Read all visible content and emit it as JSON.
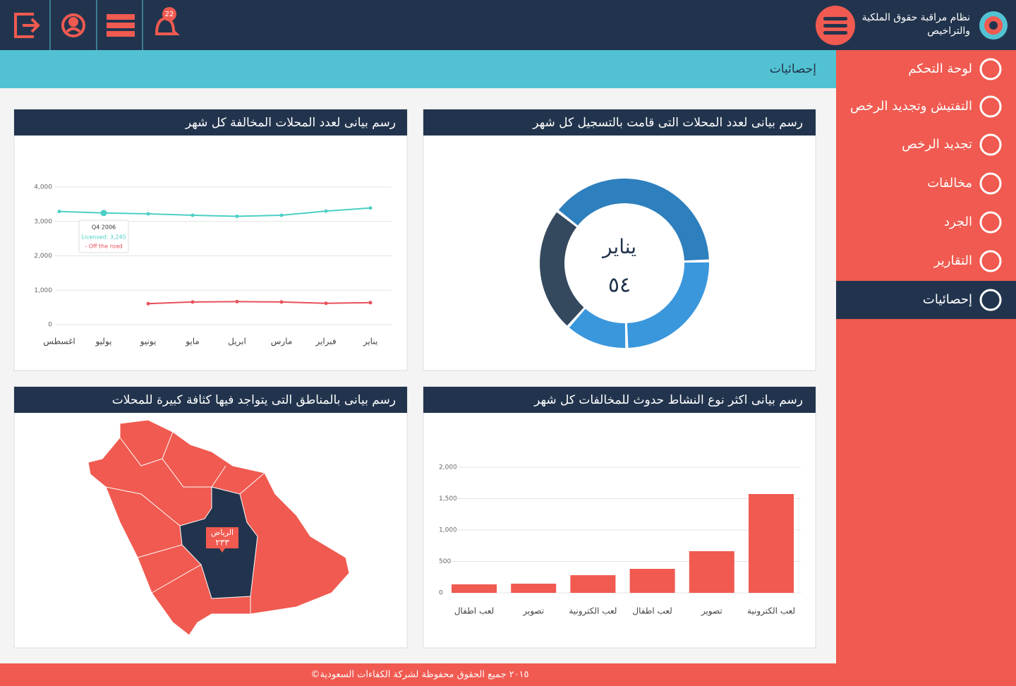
{
  "header": {
    "title_line1": "نظام مراقبة حقوق الملكية",
    "title_line2": "والتراخيص",
    "notification_count": 22
  },
  "sidebar": {
    "items": [
      "لوحة التحكم",
      "التفتيش وتجديد الرخص",
      "تجديد الرخص",
      "مخالفات",
      "الجرد",
      "التقارير",
      "إحصائيات"
    ],
    "active": 6
  },
  "page_title": "إحصائيات",
  "panels": {
    "registered": {
      "title": "رسم بيانى لعدد المحلات التى قامت بالتسجيل كل شهر",
      "chart": {
        "type": "donut",
        "center_label": "يناير",
        "center_value": "٥٤",
        "values": [
          39,
          25,
          12,
          24
        ],
        "colors": [
          "#2e7fbd",
          "#3a97dc",
          "#3a97dc",
          "#34495e"
        ],
        "start_angle": -52
      }
    },
    "violating": {
      "title": "رسم بيانى لعدد المحلات المخالفة كل شهر",
      "chart": {
        "type": "line",
        "categories": [
          "يناير",
          "فبراير",
          "مارس",
          "ابريل",
          "مايو",
          "يونيو",
          "يوليو",
          "اغسطس"
        ],
        "series": [
          {
            "name": "Licensed",
            "color": "#4ccfc4",
            "values": [
              3390,
              3300,
              3180,
              3150,
              3180,
              3220,
              3245,
              3290
            ]
          },
          {
            "name": "Off the road",
            "color": "#e8505b",
            "values": [
              640,
              620,
              660,
              670,
              660,
              610,
              null,
              null
            ]
          }
        ],
        "ylim": [
          0,
          4000
        ],
        "yticks": [
          0,
          {
            "value": 1000,
            "label": "1,000"
          },
          {
            "value": 2000,
            "label": "2,000"
          },
          {
            "value": 3000,
            "label": "3,000"
          },
          {
            "value": 4000,
            "label": "4,000"
          }
        ],
        "grid": true,
        "tooltip": {
          "title": "Q4 2006",
          "line1": "Licensed: 3,245",
          "line2": "- Off the road"
        }
      }
    },
    "activity": {
      "title": "رسم بيانى اكثر نوع النشاط حدوث للمخالفات كل شهر",
      "chart": {
        "type": "bar",
        "categories": [
          "لعب الكترونية",
          "تصوير",
          "لعب اطفال",
          "لعب الكترونية",
          "تصوير",
          "لعب اطفال"
        ],
        "values": [
          1573,
          663,
          382,
          281,
          146,
          135
        ],
        "color": "#f05a50",
        "ylim": [
          0,
          2000
        ],
        "yticks": [
          0,
          500,
          {
            "value": 1000,
            "label": "1,000"
          },
          {
            "value": 1500,
            "label": "1,500"
          },
          {
            "value": 2000,
            "label": "2,000"
          }
        ],
        "grid": true
      }
    },
    "map": {
      "title": "رسم بيانى بالمناطق التى يتواجد فيها كثافة كبيرة للمحلات",
      "tooltip_region": "الرياض",
      "tooltip_value": "٢٣٣"
    }
  },
  "footer": "©٢٠١٥ جميع الحقوق محفوظة لشركة الكفاءات السعودية"
}
